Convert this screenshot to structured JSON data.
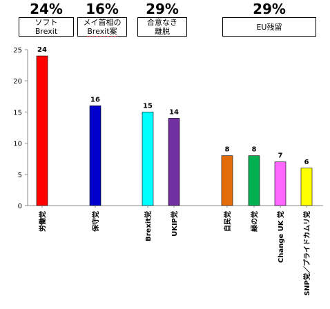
{
  "groups": [
    {
      "percent": "24%",
      "line1": "ソフト",
      "line2": "Brexit"
    },
    {
      "percent": "16%",
      "line1": "メイ首相の",
      "line2": "Brexit案"
    },
    {
      "percent": "29%",
      "line1": "合意なき",
      "line2": "離脱"
    },
    {
      "percent": "29%",
      "line1": "EU残留",
      "line2": ""
    }
  ],
  "colors": {
    "労働党": "#ff0000",
    "保守党": "#0000cc",
    "Brexit党": "#00ffff",
    "UKIP党": "#7030a0",
    "自民党": "#e36c0a",
    "緑の党": "#00b050",
    "Change UK 党": "#ff66ff",
    "SNP党／プライドカムリ党": "#ffff00"
  },
  "chart_data": {
    "type": "bar",
    "categories": [
      "労働党",
      "保守党",
      "Brexit党",
      "UKIP党",
      "自民党",
      "緑の党",
      "Change UK 党",
      "SNP党／プライドカムリ党"
    ],
    "values": [
      24,
      16,
      15,
      14,
      8,
      8,
      7,
      6
    ],
    "ylim": [
      0,
      25
    ],
    "yticks": [
      0,
      5,
      10,
      15,
      20,
      25
    ],
    "grid": false,
    "legend": "none"
  }
}
